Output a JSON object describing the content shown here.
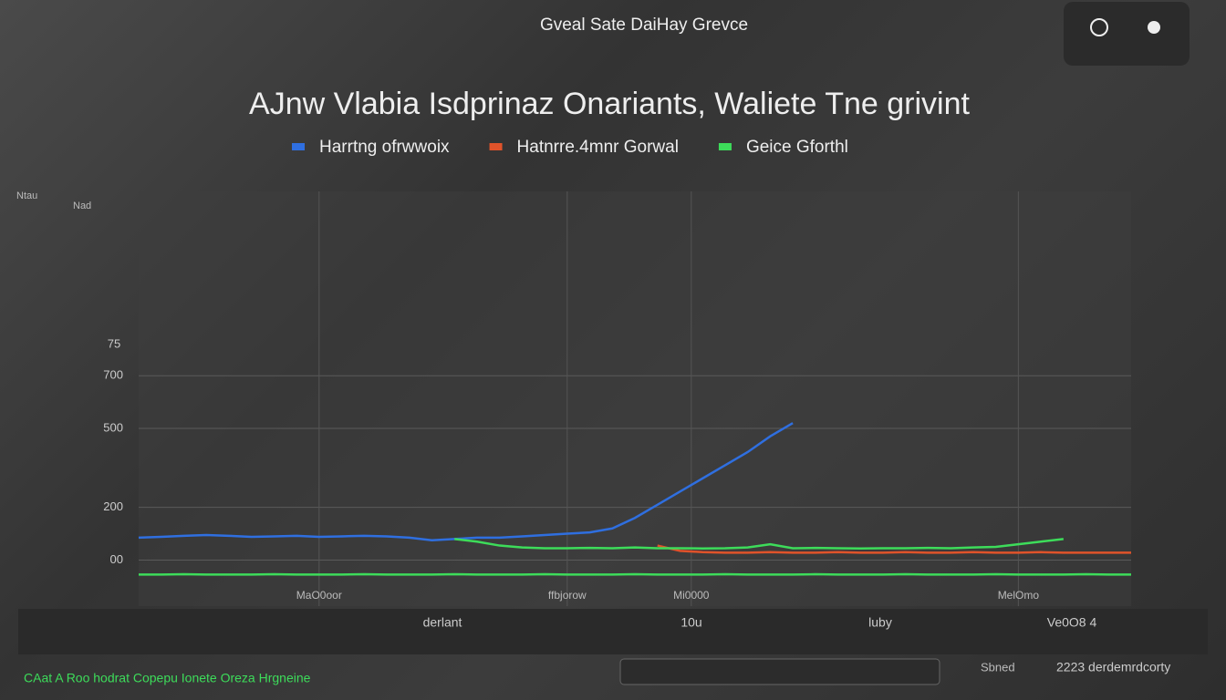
{
  "chart_data": {
    "type": "line",
    "header": "Gveal Sate DaiHay Grevce",
    "title": "AJnw Vlabia Isdprinaz Onariants, Waliete Tne grivint",
    "y_caption": "Ntau",
    "y_unit": "Nad",
    "x": [
      0,
      1,
      2,
      3,
      4,
      5,
      6,
      7,
      8,
      9,
      10,
      11,
      12,
      13,
      14,
      15,
      16,
      17,
      18,
      19,
      20,
      21,
      22,
      23,
      24,
      25,
      26,
      27,
      28,
      29,
      30,
      31,
      32,
      33,
      34,
      35,
      36,
      37,
      38,
      39,
      40,
      41,
      42,
      43,
      44
    ],
    "xlim": [
      0,
      44
    ],
    "xticks": [
      {
        "value": 8,
        "label": "MaO0oor"
      },
      {
        "value": 19,
        "label": "ffbjorow"
      },
      {
        "value": 24.5,
        "label": "Mi0000"
      },
      {
        "value": 39,
        "label": "MelOmo"
      }
    ],
    "footer_labels": [
      "derlant",
      "10u",
      "luby",
      "Ve0O8 4"
    ],
    "ylim": [
      -175,
      1400
    ],
    "yticks": [
      {
        "value": 0,
        "label": "00"
      },
      200,
      500,
      700
    ],
    "y_note": "75",
    "grid": true,
    "series": [
      {
        "name": "Harrtng ofrwwoix",
        "color": "#2f6fe0",
        "values": [
          85,
          88,
          92,
          95,
          92,
          88,
          90,
          92,
          88,
          90,
          92,
          90,
          85,
          75,
          80,
          85,
          85,
          90,
          95,
          100,
          105,
          120,
          160,
          210,
          260,
          310,
          360,
          410,
          470,
          520,
          null,
          null,
          null,
          null,
          null,
          null,
          null,
          null,
          null,
          null,
          null,
          null,
          null,
          null,
          null
        ]
      },
      {
        "name": "Hatnrre.4mnr Gorwal",
        "color": "#e0532a",
        "values": [
          null,
          null,
          null,
          null,
          null,
          null,
          null,
          null,
          null,
          null,
          null,
          null,
          null,
          null,
          null,
          null,
          null,
          null,
          null,
          null,
          null,
          null,
          null,
          55,
          35,
          30,
          28,
          28,
          30,
          28,
          28,
          30,
          28,
          28,
          30,
          28,
          28,
          30,
          28,
          28,
          30,
          28,
          28,
          28,
          28
        ]
      },
      {
        "name": "Geice Gforthl",
        "color": "#3ddc5a",
        "values": [
          null,
          null,
          null,
          null,
          null,
          null,
          null,
          null,
          null,
          null,
          null,
          null,
          null,
          null,
          80,
          70,
          55,
          48,
          45,
          45,
          46,
          45,
          48,
          45,
          45,
          44,
          45,
          48,
          60,
          45,
          46,
          45,
          44,
          45,
          45,
          46,
          45,
          48,
          50,
          60,
          70,
          80,
          null,
          null,
          null
        ]
      },
      {
        "name": "Geice Gforthl",
        "color": "#3ddc5a",
        "values": [
          -55,
          -55,
          -54,
          -55,
          -55,
          -55,
          -54,
          -55,
          -55,
          -55,
          -54,
          -55,
          -55,
          -55,
          -54,
          -55,
          -55,
          -55,
          -54,
          -55,
          -55,
          -55,
          -54,
          -55,
          -55,
          -55,
          -54,
          -55,
          -55,
          -55,
          -54,
          -55,
          -55,
          -55,
          -54,
          -55,
          -55,
          -55,
          -54,
          -55,
          -55,
          -55,
          -54,
          -55,
          -55
        ]
      }
    ],
    "status_left": "CAat A Roo hodrat Copepu Ionete Oreza Hrgneine",
    "status_right": [
      "Sbned",
      "2223 derdemrdcorty"
    ]
  }
}
